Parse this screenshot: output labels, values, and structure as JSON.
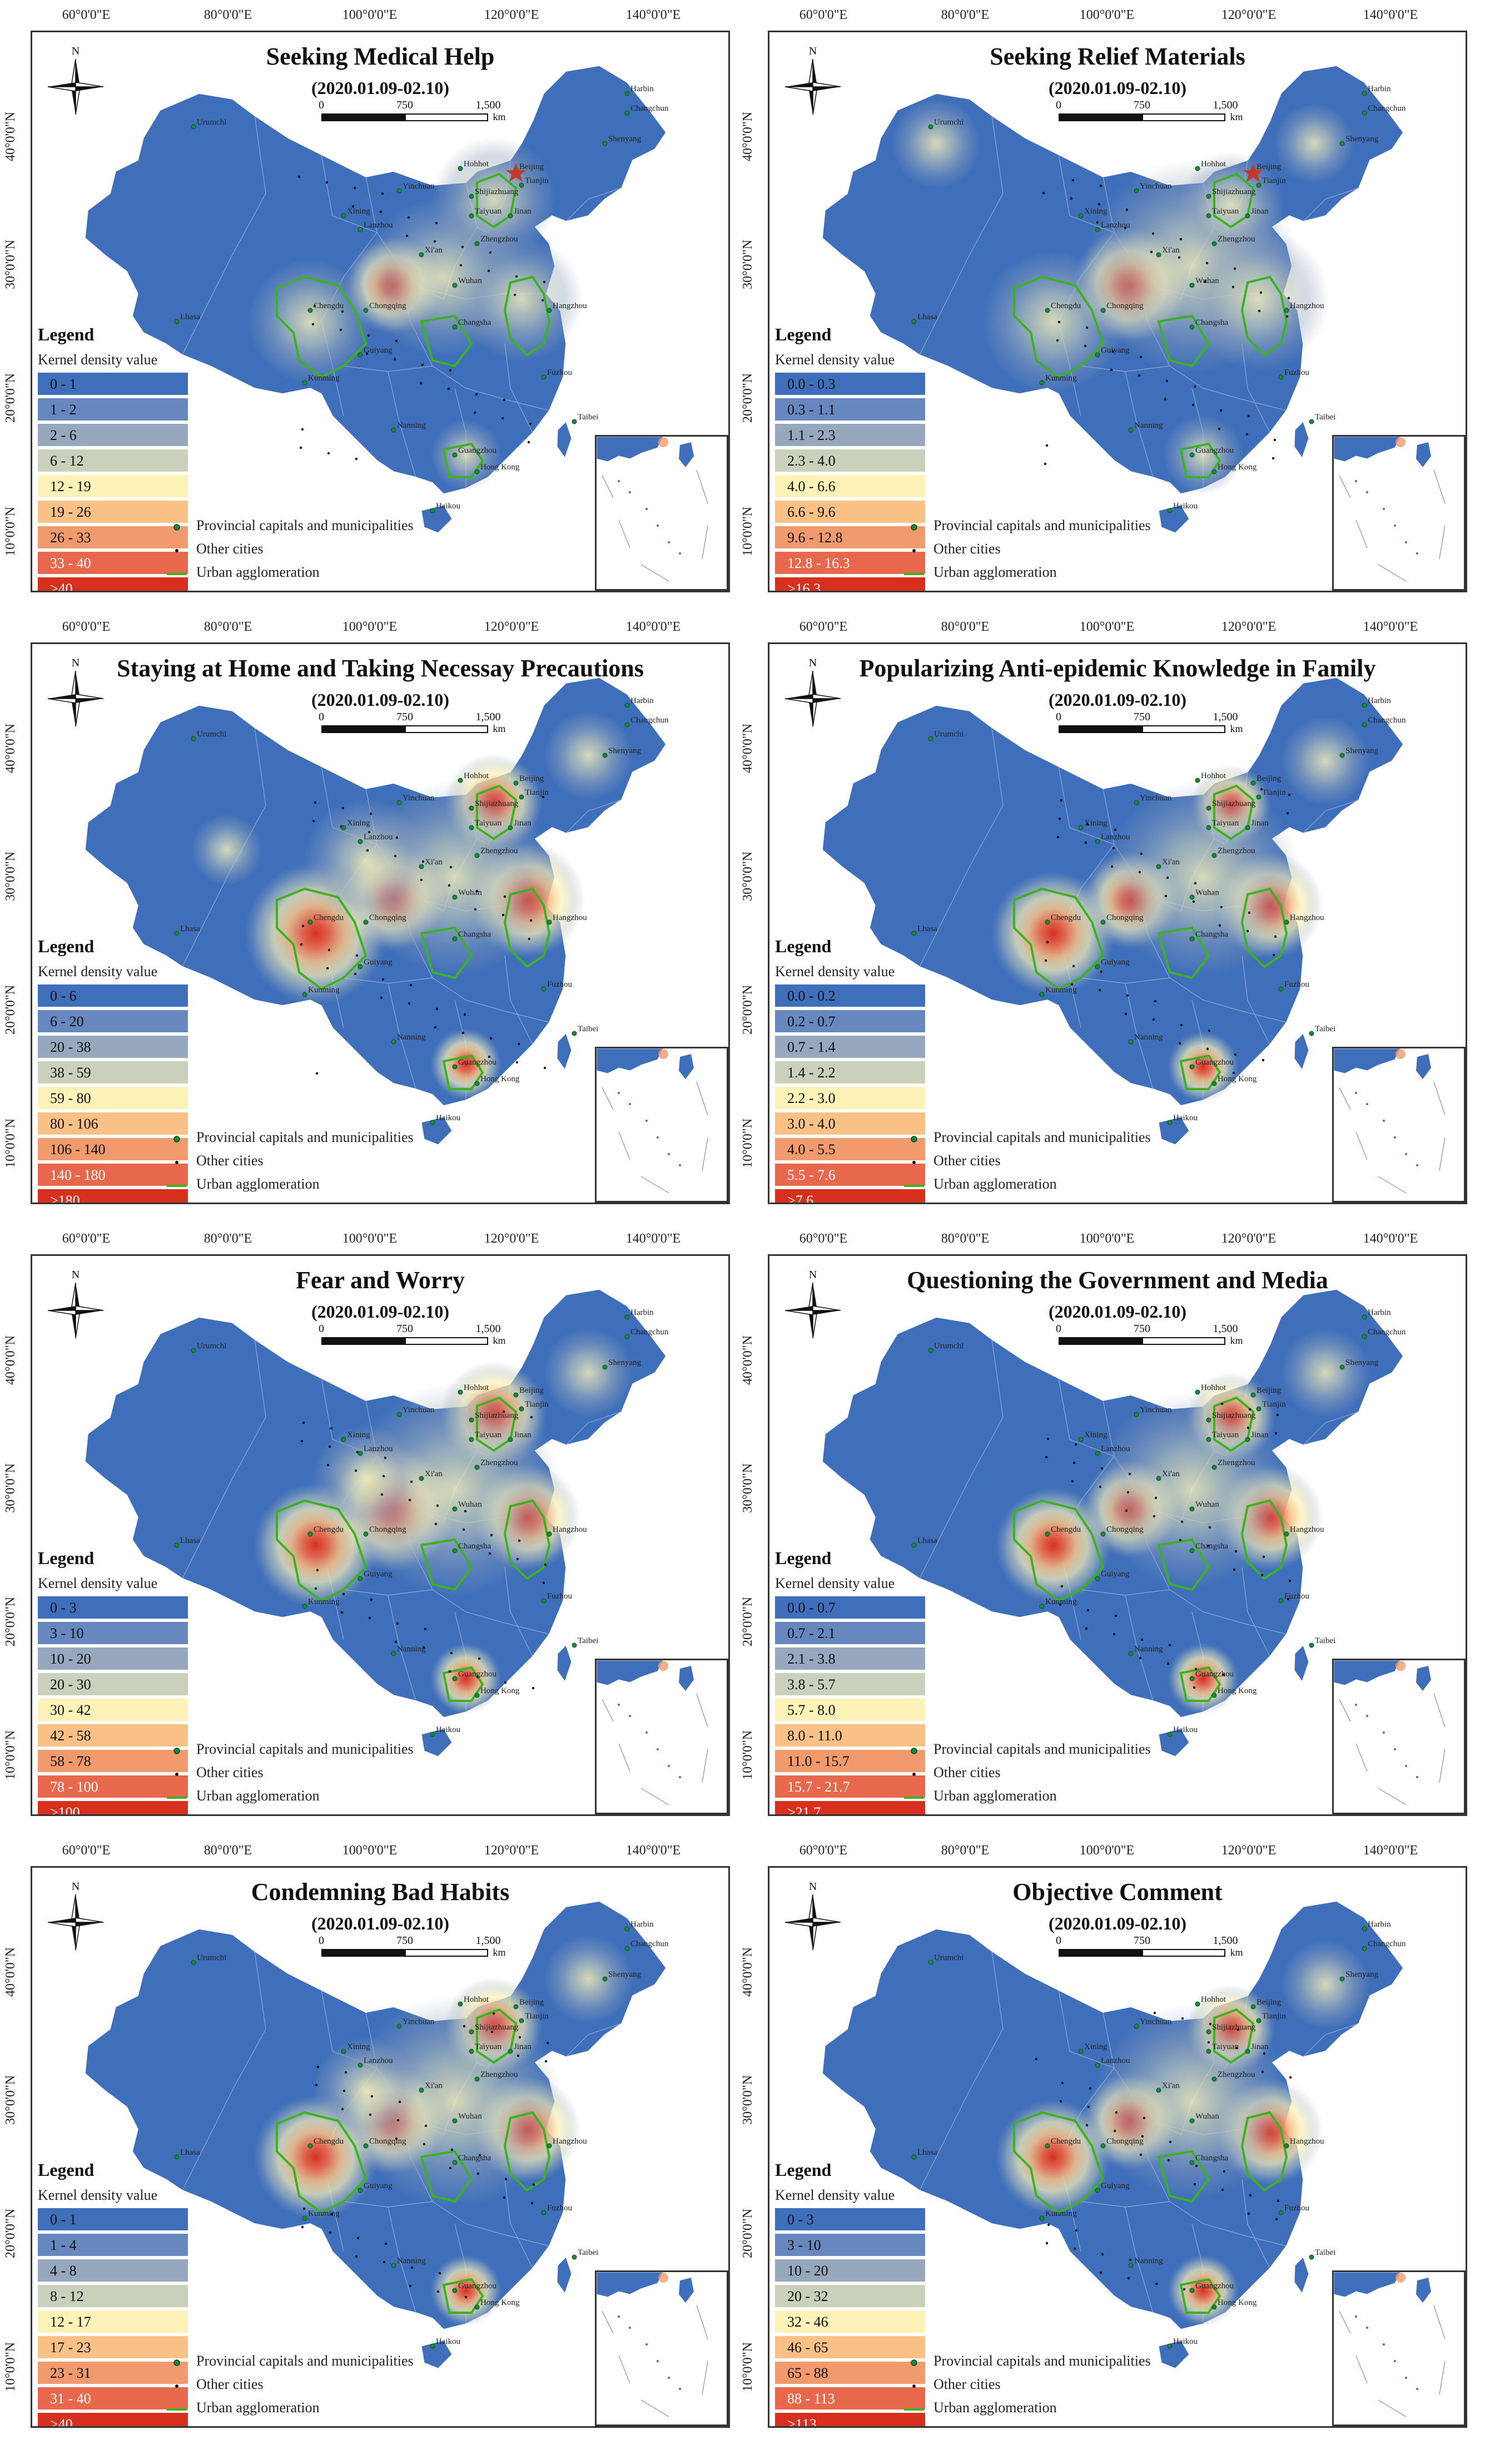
{
  "figure": {
    "longitude_labels": [
      "60°0'0\"E",
      "80°0'0\"E",
      "100°0'0\"E",
      "120°0'0\"E",
      "140°0'0\"E"
    ],
    "latitude_labels": [
      "40°0'0\"N",
      "30°0'0\"N",
      "20°0'0\"N",
      "10°0'0\"N"
    ],
    "north_label": "N",
    "scale": {
      "l0": "0",
      "l1": "750",
      "l2": "1,500",
      "unit": "km"
    },
    "symbols": {
      "capital": "Provincial capitals and municipalities",
      "other": "Other cities",
      "agglomeration": "Urban agglomeration"
    },
    "legend_title": "Legend",
    "legend_subtitle": "Kernel density value",
    "cities": [
      "Harbin",
      "Changchun",
      "Shenyang",
      "Beijing",
      "Tianjin",
      "Hohhot",
      "Shijiazhuang",
      "Yinchuan",
      "Taiyuan",
      "Xining",
      "Lanzhou",
      "Xi'an",
      "Zhengzhou",
      "Jinan",
      "Chengdu",
      "Chongqing",
      "Wuhan",
      "Changsha",
      "Guiyang",
      "Kunming",
      "Nanning",
      "Guangzhou",
      "Hong Kong",
      "Haikou",
      "Fuzhou",
      "Taibei",
      "Lhasa",
      "Urumchi",
      "Hangzhou"
    ],
    "colors": [
      "#3f6fba",
      "#6787bf",
      "#97a7bd",
      "#c9d0bc",
      "#fdf3b8",
      "#f9c185",
      "#f09a6e",
      "#e8684e",
      "#d7301f"
    ]
  },
  "panels": [
    {
      "title": "Seeking Medical Help",
      "period": "(2020.01.09-02.10)",
      "classes": [
        "0 - 1",
        "1 - 2",
        "2 - 6",
        "6 - 12",
        "12 - 19",
        "19 - 26",
        "26 - 33",
        "33 - 40",
        ">40"
      ]
    },
    {
      "title": "Seeking Relief Materials",
      "period": "(2020.01.09-02.10)",
      "classes": [
        "0.0 - 0.3",
        "0.3 - 1.1",
        "1.1 - 2.3",
        "2.3 - 4.0",
        "4.0 - 6.6",
        "6.6 - 9.6",
        "9.6 - 12.8",
        "12.8 - 16.3",
        ">16.3"
      ]
    },
    {
      "title": "Staying at Home and Taking Necessay Precautions",
      "period": "(2020.01.09-02.10)",
      "classes": [
        "0 - 6",
        "6 - 20",
        "20 - 38",
        "38 - 59",
        "59 - 80",
        "80 - 106",
        "106 - 140",
        "140 - 180",
        ">180"
      ]
    },
    {
      "title": "Popularizing Anti-epidemic Knowledge in Family",
      "period": "(2020.01.09-02.10)",
      "classes": [
        "0.0 - 0.2",
        "0.2 - 0.7",
        "0.7 - 1.4",
        "1.4 - 2.2",
        "2.2 - 3.0",
        "3.0 - 4.0",
        "4.0 - 5.5",
        "5.5 - 7.6",
        ">7.6"
      ]
    },
    {
      "title": "Fear and Worry",
      "period": "(2020.01.09-02.10)",
      "classes": [
        "0 - 3",
        "3 - 10",
        "10 - 20",
        "20 - 30",
        "30 - 42",
        "42 - 58",
        "58 - 78",
        "78 - 100",
        ">100"
      ]
    },
    {
      "title": "Questioning the Government and Media",
      "period": "(2020.01.09-02.10)",
      "classes": [
        "0.0 - 0.7",
        "0.7 - 2.1",
        "2.1 - 3.8",
        "3.8 - 5.7",
        "5.7 - 8.0",
        "8.0 - 11.0",
        "11.0 - 15.7",
        "15.7 - 21.7",
        ">21.7"
      ]
    },
    {
      "title": "Condemning Bad Habits",
      "period": "(2020.01.09-02.10)",
      "classes": [
        "0 - 1",
        "1 - 4",
        "4 - 8",
        "8 - 12",
        "12 - 17",
        "17 - 23",
        "23 - 31",
        "31 - 40",
        ">40"
      ]
    },
    {
      "title": "Objective Comment",
      "period": "(2020.01.09-02.10)",
      "classes": [
        "0 - 3",
        "3 - 10",
        "10 - 20",
        "20 - 32",
        "32 - 46",
        "46 - 65",
        "65 - 88",
        "88 - 113",
        ">113"
      ]
    }
  ]
}
